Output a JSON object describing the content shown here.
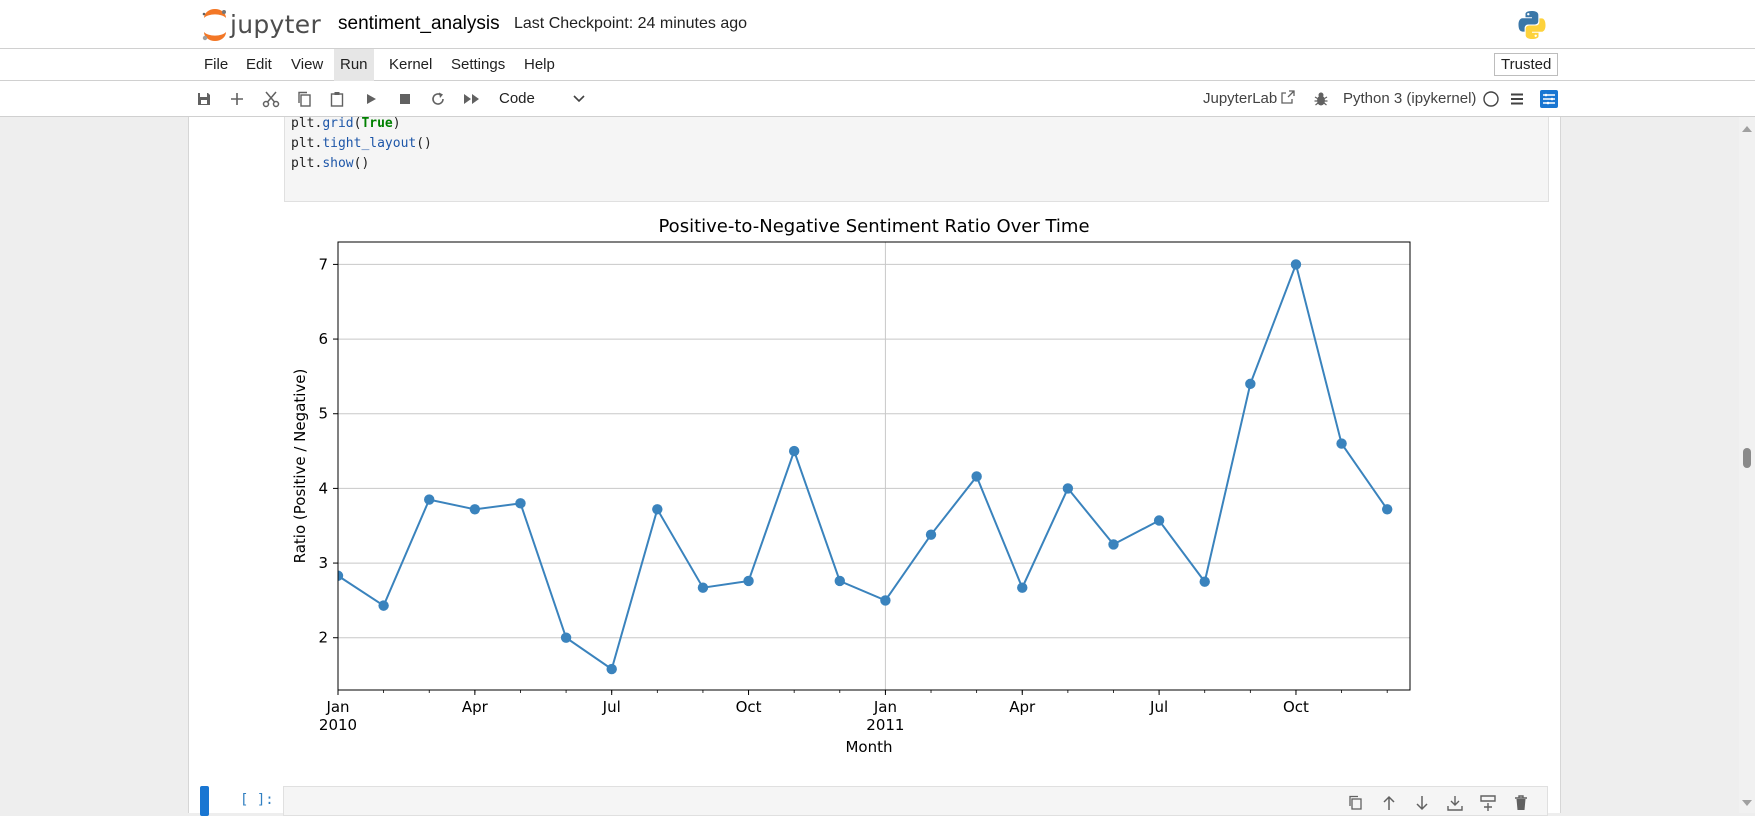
{
  "header": {
    "logo_text": "jupyter",
    "notebook_title": "sentiment_analysis",
    "checkpoint": "Last Checkpoint: 24 minutes ago"
  },
  "menu": {
    "items": [
      "File",
      "Edit",
      "View",
      "Run",
      "Kernel",
      "Settings",
      "Help"
    ],
    "active": "Run",
    "trusted_label": "Trusted"
  },
  "toolbar": {
    "cell_type": "Code",
    "jupyterlab_label": "JupyterLab",
    "kernel_label": "Python 3 (ipykernel)",
    "icons": [
      "save-icon",
      "add-cell-icon",
      "cut-icon",
      "copy-icon",
      "paste-icon",
      "run-icon",
      "stop-icon",
      "restart-icon",
      "fast-forward-icon"
    ]
  },
  "code_cell": {
    "lines": [
      {
        "obj": "plt.",
        "fn": "grid",
        "open": "(",
        "arg": "True",
        "close": ")"
      },
      {
        "obj": "plt.",
        "fn": "tight_layout",
        "open": "()",
        "arg": "",
        "close": ""
      },
      {
        "obj": "plt.",
        "fn": "show",
        "open": "()",
        "arg": "",
        "close": ""
      }
    ]
  },
  "next_cell": {
    "prompt": "[ ]:"
  },
  "chart_data": {
    "type": "line",
    "title": "Positive-to-Negative Sentiment Ratio Over Time",
    "xlabel": "Month",
    "ylabel": "Ratio (Positive / Negative)",
    "ylim": [
      1.3,
      7.3
    ],
    "yticks": [
      2,
      3,
      4,
      5,
      6,
      7
    ],
    "grid": true,
    "color": "#3a83bd",
    "x": [
      "2010-01",
      "2010-02",
      "2010-03",
      "2010-04",
      "2010-05",
      "2010-06",
      "2010-07",
      "2010-08",
      "2010-09",
      "2010-10",
      "2010-11",
      "2010-12",
      "2011-01",
      "2011-02",
      "2011-03",
      "2011-04",
      "2011-05",
      "2011-06",
      "2011-07",
      "2011-08",
      "2011-09",
      "2011-10",
      "2011-11",
      "2011-12"
    ],
    "values": [
      2.83,
      2.43,
      3.85,
      3.72,
      3.8,
      2.0,
      1.58,
      3.72,
      2.67,
      2.76,
      4.5,
      2.76,
      2.5,
      3.38,
      4.16,
      2.67,
      4.0,
      3.25,
      3.57,
      2.75,
      5.4,
      7.0,
      4.6,
      3.72
    ],
    "xticks": [
      {
        "index": 0,
        "label": "Jan",
        "sublabel": "2010"
      },
      {
        "index": 3,
        "label": "Apr",
        "sublabel": ""
      },
      {
        "index": 6,
        "label": "Jul",
        "sublabel": ""
      },
      {
        "index": 9,
        "label": "Oct",
        "sublabel": ""
      },
      {
        "index": 12,
        "label": "Jan",
        "sublabel": "2011"
      },
      {
        "index": 15,
        "label": "Apr",
        "sublabel": ""
      },
      {
        "index": 18,
        "label": "Jul",
        "sublabel": ""
      },
      {
        "index": 21,
        "label": "Oct",
        "sublabel": ""
      }
    ]
  }
}
